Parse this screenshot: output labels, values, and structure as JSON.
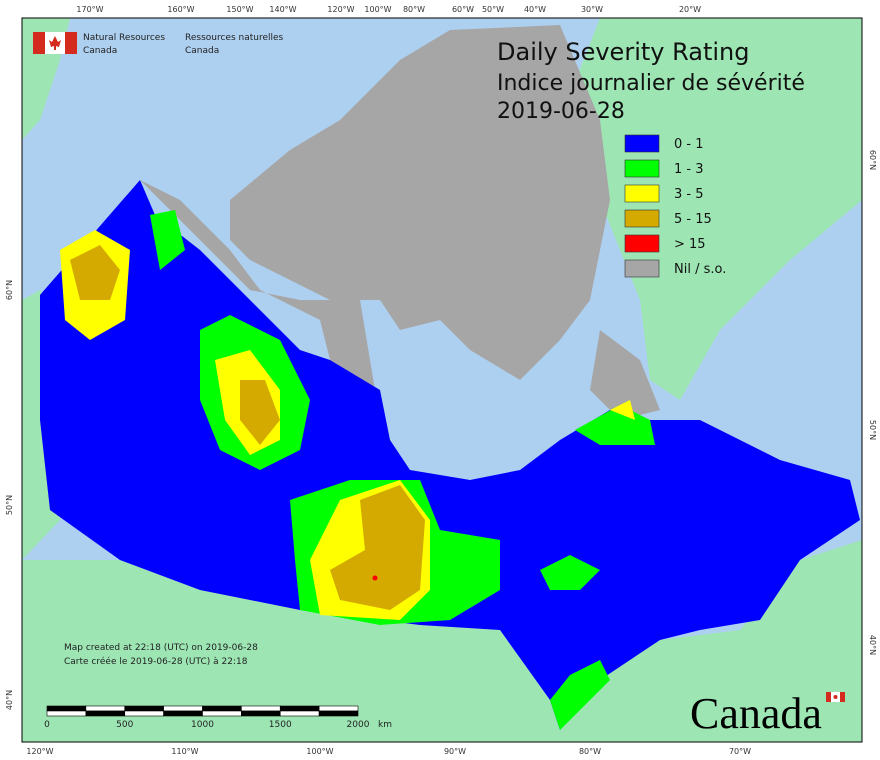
{
  "agency": {
    "en_line1": "Natural Resources",
    "en_line2": "Canada",
    "fr_line1": "Ressources naturelles",
    "fr_line2": "Canada"
  },
  "title": {
    "line1": "Daily Severity Rating",
    "line2": "Indice journalier de sévérité",
    "date": "2019-06-28"
  },
  "legend": [
    {
      "label": "0 - 1",
      "color": "#0000ff"
    },
    {
      "label": "1 - 3",
      "color": "#00ff00"
    },
    {
      "label": "3 - 5",
      "color": "#ffff00"
    },
    {
      "label": "5 - 15",
      "color": "#d4aa00"
    },
    {
      "label": "> 15",
      "color": "#ff0000"
    },
    {
      "label": "Nil / s.o.",
      "color": "#a6a6a6"
    }
  ],
  "top_longitudes": [
    "170°W",
    "160°W",
    "150°W",
    "140°W",
    "120°W",
    "100°W",
    "80°W",
    "60°W",
    "50°W",
    "40°W",
    "30°W",
    "20°W"
  ],
  "bottom_longitudes": [
    "120°W",
    "110°W",
    "100°W",
    "90°W",
    "80°W",
    "70°W"
  ],
  "left_latitudes": [
    "60°N",
    "50°N",
    "40°N"
  ],
  "right_latitudes": [
    "60°N",
    "50°N",
    "40°N"
  ],
  "credits": {
    "en": "Map created at 22:18 (UTC) on 2019-06-28",
    "fr": "Carte créée le 2019-06-28 (UTC) à 22:18"
  },
  "scale_bar": {
    "labels": [
      "0",
      "500",
      "1000",
      "1500",
      "2000"
    ],
    "unit": "km"
  },
  "wordmark": "Canada"
}
